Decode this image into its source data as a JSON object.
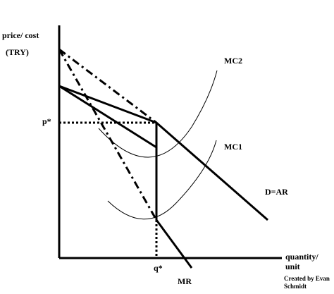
{
  "axes": {
    "y_label_line1": "price/ cost",
    "y_label_line2": "(TRY)",
    "x_label_line1": "quantity/",
    "x_label_line2": "unit"
  },
  "markers": {
    "p_star": "p*",
    "q_star": "q*"
  },
  "curves": {
    "mc2": "MC2",
    "mc1": "MC1",
    "demand": "D=AR",
    "mr": "MR"
  },
  "credit": {
    "line1": "Created by Evan",
    "line2": "Schmidt"
  }
}
